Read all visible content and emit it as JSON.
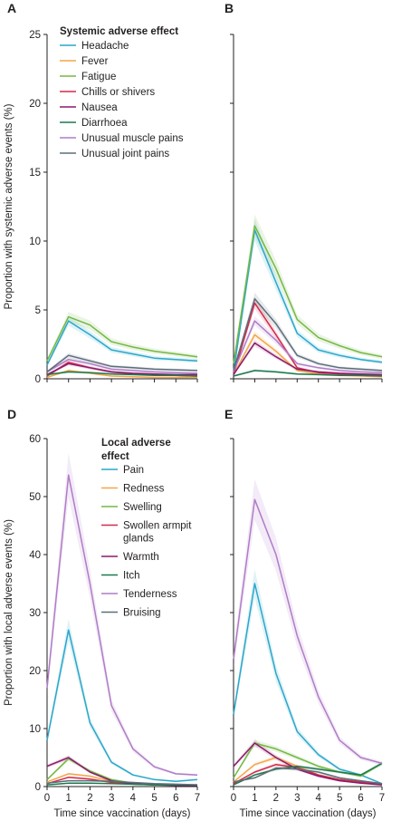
{
  "chart_data": [
    {
      "panel": "A",
      "type": "line",
      "x": [
        0,
        1,
        2,
        3,
        4,
        5,
        6,
        7
      ],
      "xlim": [
        0,
        7
      ],
      "ylim": [
        0,
        25
      ],
      "yticks": [
        0,
        5,
        10,
        15,
        20,
        25
      ],
      "ylabel": "Proportion with systemic adverse events (%)",
      "xlabel": "",
      "legend_title": "Systemic adverse effect",
      "series": [
        {
          "name": "Headache",
          "color": "#2aa7c9",
          "values": [
            1.0,
            4.2,
            3.2,
            2.1,
            1.8,
            1.5,
            1.4,
            1.3
          ]
        },
        {
          "name": "Fever",
          "color": "#f3a64a",
          "values": [
            0.1,
            0.6,
            0.4,
            0.2,
            0.15,
            0.1,
            0.1,
            0.1
          ]
        },
        {
          "name": "Fatigue",
          "color": "#74b843",
          "values": [
            1.3,
            4.5,
            3.9,
            2.7,
            2.3,
            2.0,
            1.8,
            1.6
          ]
        },
        {
          "name": "Chills or shivers",
          "color": "#d42a4a",
          "values": [
            0.2,
            1.2,
            0.8,
            0.5,
            0.35,
            0.3,
            0.25,
            0.2
          ]
        },
        {
          "name": "Nausea",
          "color": "#8a1b6b",
          "values": [
            0.3,
            1.1,
            0.8,
            0.5,
            0.4,
            0.35,
            0.3,
            0.3
          ]
        },
        {
          "name": "Diarrhoea",
          "color": "#1d7a4e",
          "values": [
            0.3,
            0.5,
            0.45,
            0.35,
            0.3,
            0.25,
            0.25,
            0.2
          ]
        },
        {
          "name": "Unusual muscle pains",
          "color": "#b07cc6",
          "values": [
            0.5,
            1.4,
            1.1,
            0.7,
            0.6,
            0.5,
            0.45,
            0.4
          ]
        },
        {
          "name": "Unusual joint pains",
          "color": "#5b6e7a",
          "values": [
            0.5,
            1.7,
            1.3,
            0.9,
            0.8,
            0.7,
            0.65,
            0.6
          ]
        }
      ]
    },
    {
      "panel": "B",
      "type": "line",
      "x": [
        0,
        1,
        2,
        3,
        4,
        5,
        6,
        7
      ],
      "xlim": [
        0,
        7
      ],
      "ylim": [
        0,
        25
      ],
      "xlabel": "",
      "series": [
        {
          "name": "Headache",
          "color": "#2aa7c9",
          "values": [
            0.5,
            10.8,
            7.0,
            3.3,
            2.1,
            1.7,
            1.4,
            1.2
          ]
        },
        {
          "name": "Fever",
          "color": "#f3a64a",
          "values": [
            0.3,
            3.2,
            2.0,
            0.6,
            0.35,
            0.25,
            0.2,
            0.15
          ]
        },
        {
          "name": "Fatigue",
          "color": "#74b843",
          "values": [
            1.1,
            11.1,
            8.0,
            4.3,
            3.0,
            2.4,
            1.9,
            1.6
          ]
        },
        {
          "name": "Chills or shivers",
          "color": "#d42a4a",
          "values": [
            0.3,
            5.5,
            3.2,
            0.8,
            0.45,
            0.35,
            0.3,
            0.25
          ]
        },
        {
          "name": "Nausea",
          "color": "#8a1b6b",
          "values": [
            0.3,
            2.6,
            1.6,
            0.7,
            0.5,
            0.4,
            0.35,
            0.3
          ]
        },
        {
          "name": "Diarrhoea",
          "color": "#1d7a4e",
          "values": [
            0.2,
            0.6,
            0.5,
            0.35,
            0.3,
            0.25,
            0.25,
            0.2
          ]
        },
        {
          "name": "Unusual muscle pains",
          "color": "#b07cc6",
          "values": [
            0.5,
            4.2,
            2.8,
            1.1,
            0.8,
            0.6,
            0.5,
            0.45
          ]
        },
        {
          "name": "Unusual joint pains",
          "color": "#5b6e7a",
          "values": [
            0.6,
            5.8,
            4.0,
            1.7,
            1.1,
            0.8,
            0.7,
            0.6
          ]
        }
      ]
    },
    {
      "panel": "D",
      "type": "line",
      "x": [
        0,
        1,
        2,
        3,
        4,
        5,
        6,
        7
      ],
      "xlim": [
        0,
        7
      ],
      "ylim": [
        0,
        60
      ],
      "yticks": [
        0,
        10,
        20,
        30,
        40,
        50,
        60
      ],
      "xticks": [
        0,
        1,
        2,
        3,
        4,
        5,
        6,
        7
      ],
      "ylabel": "Proportion with local adverse events (%)",
      "xlabel": "Time since vaccination (days)",
      "legend_title": "Local adverse effect",
      "series": [
        {
          "name": "Pain",
          "color": "#2aa7c9",
          "values": [
            8.0,
            27.0,
            11.0,
            4.2,
            2.0,
            1.2,
            0.9,
            1.2
          ]
        },
        {
          "name": "Redness",
          "color": "#f3a64a",
          "values": [
            0.8,
            2.2,
            1.8,
            0.9,
            0.5,
            0.35,
            0.3,
            0.3
          ]
        },
        {
          "name": "Swelling",
          "color": "#74b843",
          "values": [
            1.2,
            4.8,
            2.7,
            1.2,
            0.6,
            0.4,
            0.3,
            0.3
          ]
        },
        {
          "name": "Swollen armpit glands",
          "color": "#d42a4a",
          "values": [
            0.5,
            1.6,
            1.3,
            0.7,
            0.4,
            0.3,
            0.25,
            0.2
          ]
        },
        {
          "name": "Warmth",
          "color": "#8a1b6b",
          "values": [
            3.5,
            5.0,
            2.5,
            1.0,
            0.5,
            0.3,
            0.2,
            0.2
          ]
        },
        {
          "name": "Itch",
          "color": "#1d7a4e",
          "values": [
            0.3,
            0.6,
            0.6,
            0.5,
            0.4,
            0.3,
            0.3,
            0.3
          ]
        },
        {
          "name": "Tenderness",
          "color": "#b07cc6",
          "values": [
            17.0,
            53.7,
            35.0,
            14.0,
            6.5,
            3.4,
            2.2,
            2.0
          ]
        },
        {
          "name": "Bruising",
          "color": "#5b6e7a",
          "values": [
            0.6,
            1.0,
            1.0,
            0.9,
            0.7,
            0.5,
            0.4,
            0.3
          ]
        }
      ]
    },
    {
      "panel": "E",
      "type": "line",
      "x": [
        0,
        1,
        2,
        3,
        4,
        5,
        6,
        7
      ],
      "xlim": [
        0,
        7
      ],
      "ylim": [
        0,
        60
      ],
      "xticks": [
        0,
        1,
        2,
        3,
        4,
        5,
        6,
        7
      ],
      "xlabel": "Time since vaccination (days)",
      "series": [
        {
          "name": "Pain",
          "color": "#2aa7c9",
          "values": [
            12.5,
            35.0,
            19.5,
            9.5,
            5.5,
            3.0,
            2.0,
            0.5
          ]
        },
        {
          "name": "Redness",
          "color": "#f3a64a",
          "values": [
            0.8,
            3.8,
            5.0,
            3.5,
            2.0,
            1.2,
            0.8,
            0.5
          ]
        },
        {
          "name": "Swelling",
          "color": "#74b843",
          "values": [
            1.5,
            7.5,
            6.5,
            5.0,
            3.5,
            2.5,
            1.8,
            4.0
          ]
        },
        {
          "name": "Swollen armpit glands",
          "color": "#d42a4a",
          "values": [
            0.5,
            2.5,
            3.8,
            3.3,
            2.0,
            1.2,
            0.8,
            0.3
          ]
        },
        {
          "name": "Warmth",
          "color": "#8a1b6b",
          "values": [
            3.5,
            7.5,
            5.0,
            3.0,
            1.8,
            1.0,
            0.6,
            0.3
          ]
        },
        {
          "name": "Itch",
          "color": "#1d7a4e",
          "values": [
            0.3,
            2.0,
            3.0,
            3.5,
            3.0,
            2.5,
            2.0,
            4.0
          ]
        },
        {
          "name": "Tenderness",
          "color": "#b07cc6",
          "values": [
            22.0,
            49.5,
            40.0,
            26.0,
            15.5,
            8.0,
            5.0,
            4.0
          ]
        },
        {
          "name": "Bruising",
          "color": "#5b6e7a",
          "values": [
            0.8,
            1.5,
            3.2,
            3.0,
            2.5,
            1.5,
            1.0,
            0.5
          ]
        }
      ]
    }
  ]
}
